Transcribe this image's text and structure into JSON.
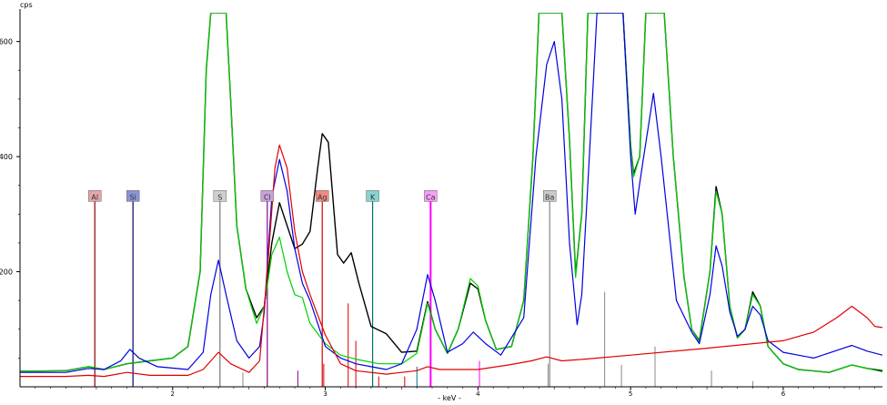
{
  "chart_data": {
    "type": "line",
    "title": "",
    "xlabel": "- keV -",
    "ylabel": "cps",
    "xlim": [
      1.0,
      6.65
    ],
    "ylim": [
      0,
      650
    ],
    "x_ticks": [
      2,
      3,
      4,
      5,
      6
    ],
    "y_ticks": [
      200,
      400,
      600
    ],
    "colors": {
      "axis": "#000000",
      "series_black": "#000000",
      "series_green": "#00d000",
      "series_blue": "#0000e0",
      "series_red": "#e00000"
    },
    "series": [
      {
        "color": "#000000",
        "style": "solid",
        "points": [
          [
            1.0,
            27
          ],
          [
            1.3,
            28
          ],
          [
            1.45,
            35
          ],
          [
            1.55,
            30
          ],
          [
            1.7,
            40
          ],
          [
            1.85,
            45
          ],
          [
            2.0,
            50
          ],
          [
            2.1,
            70
          ],
          [
            2.18,
            200
          ],
          [
            2.22,
            550
          ],
          [
            2.25,
            650
          ],
          [
            2.3,
            650
          ],
          [
            2.35,
            650
          ],
          [
            2.38,
            500
          ],
          [
            2.42,
            280
          ],
          [
            2.48,
            170
          ],
          [
            2.55,
            120
          ],
          [
            2.6,
            140
          ],
          [
            2.65,
            250
          ],
          [
            2.7,
            320
          ],
          [
            2.75,
            280
          ],
          [
            2.8,
            240
          ],
          [
            2.85,
            248
          ],
          [
            2.9,
            270
          ],
          [
            2.95,
            380
          ],
          [
            2.98,
            440
          ],
          [
            3.02,
            425
          ],
          [
            3.08,
            230
          ],
          [
            3.12,
            215
          ],
          [
            3.17,
            233
          ],
          [
            3.22,
            180
          ],
          [
            3.3,
            105
          ],
          [
            3.4,
            92
          ],
          [
            3.5,
            60
          ],
          [
            3.6,
            62
          ],
          [
            3.67,
            148
          ],
          [
            3.72,
            100
          ],
          [
            3.8,
            58
          ],
          [
            3.87,
            100
          ],
          [
            3.95,
            180
          ],
          [
            4.0,
            170
          ],
          [
            4.05,
            115
          ],
          [
            4.12,
            65
          ],
          [
            4.22,
            70
          ],
          [
            4.3,
            150
          ],
          [
            4.36,
            400
          ],
          [
            4.4,
            650
          ],
          [
            4.45,
            650
          ],
          [
            4.55,
            650
          ],
          [
            4.6,
            430
          ],
          [
            4.64,
            195
          ],
          [
            4.68,
            300
          ],
          [
            4.72,
            650
          ],
          [
            4.78,
            650
          ],
          [
            4.95,
            650
          ],
          [
            5.0,
            420
          ],
          [
            5.02,
            370
          ],
          [
            5.06,
            400
          ],
          [
            5.1,
            650
          ],
          [
            5.22,
            650
          ],
          [
            5.28,
            400
          ],
          [
            5.35,
            190
          ],
          [
            5.4,
            100
          ],
          [
            5.45,
            80
          ],
          [
            5.52,
            200
          ],
          [
            5.56,
            348
          ],
          [
            5.6,
            300
          ],
          [
            5.65,
            140
          ],
          [
            5.7,
            85
          ],
          [
            5.75,
            100
          ],
          [
            5.8,
            165
          ],
          [
            5.85,
            140
          ],
          [
            5.9,
            70
          ],
          [
            6.0,
            40
          ],
          [
            6.1,
            30
          ],
          [
            6.3,
            25
          ],
          [
            6.45,
            38
          ],
          [
            6.55,
            32
          ],
          [
            6.65,
            28
          ]
        ]
      },
      {
        "color": "#00d000",
        "style": "solid",
        "points": [
          [
            1.0,
            27
          ],
          [
            1.3,
            28
          ],
          [
            1.45,
            35
          ],
          [
            1.55,
            30
          ],
          [
            1.7,
            40
          ],
          [
            1.85,
            45
          ],
          [
            2.0,
            50
          ],
          [
            2.1,
            70
          ],
          [
            2.18,
            200
          ],
          [
            2.22,
            550
          ],
          [
            2.25,
            650
          ],
          [
            2.3,
            650
          ],
          [
            2.35,
            650
          ],
          [
            2.38,
            500
          ],
          [
            2.42,
            280
          ],
          [
            2.48,
            170
          ],
          [
            2.55,
            110
          ],
          [
            2.6,
            140
          ],
          [
            2.65,
            230
          ],
          [
            2.7,
            260
          ],
          [
            2.75,
            200
          ],
          [
            2.8,
            160
          ],
          [
            2.85,
            155
          ],
          [
            2.9,
            110
          ],
          [
            3.0,
            75
          ],
          [
            3.1,
            55
          ],
          [
            3.2,
            48
          ],
          [
            3.35,
            40
          ],
          [
            3.5,
            40
          ],
          [
            3.6,
            58
          ],
          [
            3.67,
            145
          ],
          [
            3.72,
            100
          ],
          [
            3.8,
            58
          ],
          [
            3.87,
            100
          ],
          [
            3.95,
            188
          ],
          [
            4.0,
            175
          ],
          [
            4.05,
            115
          ],
          [
            4.12,
            65
          ],
          [
            4.22,
            70
          ],
          [
            4.3,
            150
          ],
          [
            4.36,
            400
          ],
          [
            4.4,
            650
          ],
          [
            4.45,
            650
          ],
          [
            4.55,
            650
          ],
          [
            4.6,
            430
          ],
          [
            4.64,
            190
          ],
          [
            4.68,
            300
          ],
          [
            4.72,
            650
          ],
          [
            4.78,
            650
          ],
          [
            4.95,
            650
          ],
          [
            5.0,
            420
          ],
          [
            5.02,
            365
          ],
          [
            5.06,
            400
          ],
          [
            5.1,
            650
          ],
          [
            5.22,
            650
          ],
          [
            5.28,
            400
          ],
          [
            5.35,
            190
          ],
          [
            5.4,
            100
          ],
          [
            5.45,
            78
          ],
          [
            5.52,
            200
          ],
          [
            5.56,
            340
          ],
          [
            5.6,
            300
          ],
          [
            5.65,
            140
          ],
          [
            5.7,
            85
          ],
          [
            5.75,
            100
          ],
          [
            5.8,
            160
          ],
          [
            5.85,
            140
          ],
          [
            5.9,
            70
          ],
          [
            6.0,
            40
          ],
          [
            6.1,
            30
          ],
          [
            6.3,
            25
          ],
          [
            6.45,
            38
          ],
          [
            6.55,
            32
          ],
          [
            6.65,
            26
          ]
        ]
      },
      {
        "color": "#0000e0",
        "style": "solid",
        "points": [
          [
            1.0,
            25
          ],
          [
            1.3,
            25
          ],
          [
            1.45,
            32
          ],
          [
            1.55,
            30
          ],
          [
            1.66,
            45
          ],
          [
            1.72,
            65
          ],
          [
            1.78,
            50
          ],
          [
            1.9,
            35
          ],
          [
            2.1,
            30
          ],
          [
            2.2,
            60
          ],
          [
            2.25,
            160
          ],
          [
            2.3,
            220
          ],
          [
            2.35,
            160
          ],
          [
            2.42,
            80
          ],
          [
            2.5,
            50
          ],
          [
            2.57,
            70
          ],
          [
            2.6,
            130
          ],
          [
            2.65,
            330
          ],
          [
            2.7,
            395
          ],
          [
            2.75,
            340
          ],
          [
            2.8,
            240
          ],
          [
            2.85,
            180
          ],
          [
            2.9,
            150
          ],
          [
            3.0,
            70
          ],
          [
            3.1,
            50
          ],
          [
            3.2,
            40
          ],
          [
            3.3,
            35
          ],
          [
            3.4,
            30
          ],
          [
            3.5,
            40
          ],
          [
            3.6,
            100
          ],
          [
            3.67,
            195
          ],
          [
            3.72,
            150
          ],
          [
            3.8,
            60
          ],
          [
            3.9,
            75
          ],
          [
            3.97,
            95
          ],
          [
            4.05,
            75
          ],
          [
            4.15,
            55
          ],
          [
            4.3,
            120
          ],
          [
            4.38,
            400
          ],
          [
            4.45,
            560
          ],
          [
            4.5,
            600
          ],
          [
            4.55,
            500
          ],
          [
            4.6,
            250
          ],
          [
            4.65,
            108
          ],
          [
            4.68,
            160
          ],
          [
            4.73,
            400
          ],
          [
            4.78,
            650
          ],
          [
            4.95,
            650
          ],
          [
            5.0,
            400
          ],
          [
            5.03,
            300
          ],
          [
            5.08,
            390
          ],
          [
            5.15,
            510
          ],
          [
            5.2,
            400
          ],
          [
            5.3,
            150
          ],
          [
            5.4,
            95
          ],
          [
            5.45,
            75
          ],
          [
            5.52,
            160
          ],
          [
            5.56,
            245
          ],
          [
            5.6,
            210
          ],
          [
            5.65,
            130
          ],
          [
            5.7,
            88
          ],
          [
            5.75,
            100
          ],
          [
            5.8,
            140
          ],
          [
            5.85,
            125
          ],
          [
            5.9,
            80
          ],
          [
            6.0,
            60
          ],
          [
            6.2,
            50
          ],
          [
            6.45,
            72
          ],
          [
            6.55,
            62
          ],
          [
            6.65,
            55
          ]
        ]
      },
      {
        "color": "#e00000",
        "style": "solid",
        "points": [
          [
            1.0,
            18
          ],
          [
            1.3,
            18
          ],
          [
            1.45,
            20
          ],
          [
            1.55,
            18
          ],
          [
            1.7,
            25
          ],
          [
            1.85,
            20
          ],
          [
            2.1,
            20
          ],
          [
            2.2,
            30
          ],
          [
            2.3,
            60
          ],
          [
            2.38,
            40
          ],
          [
            2.5,
            25
          ],
          [
            2.57,
            45
          ],
          [
            2.62,
            200
          ],
          [
            2.67,
            380
          ],
          [
            2.7,
            420
          ],
          [
            2.75,
            380
          ],
          [
            2.8,
            270
          ],
          [
            2.85,
            200
          ],
          [
            2.9,
            160
          ],
          [
            3.0,
            90
          ],
          [
            3.1,
            40
          ],
          [
            3.2,
            28
          ],
          [
            3.4,
            22
          ],
          [
            3.5,
            25
          ],
          [
            3.6,
            28
          ],
          [
            3.67,
            35
          ],
          [
            3.75,
            30
          ],
          [
            4.0,
            30
          ],
          [
            4.2,
            38
          ],
          [
            4.35,
            45
          ],
          [
            4.45,
            52
          ],
          [
            4.55,
            45
          ],
          [
            4.7,
            48
          ],
          [
            5.0,
            55
          ],
          [
            5.5,
            67
          ],
          [
            6.0,
            80
          ],
          [
            6.2,
            95
          ],
          [
            6.35,
            120
          ],
          [
            6.45,
            140
          ],
          [
            6.55,
            120
          ],
          [
            6.6,
            105
          ],
          [
            6.65,
            103
          ]
        ]
      }
    ],
    "elements": [
      {
        "symbol": "Al",
        "energy": 1.49,
        "height": 330,
        "color": "#8b0000",
        "box": "#e3a7a7"
      },
      {
        "symbol": "Si",
        "energy": 1.74,
        "height": 330,
        "color": "#00006a",
        "box": "#8c93d8"
      },
      {
        "symbol": "S",
        "energy": 2.31,
        "height": 330,
        "color": "#777777",
        "box": "#cfcfcf"
      },
      {
        "symbol": "Cl",
        "energy": 2.62,
        "height": 330,
        "color": "#8a008a",
        "box": "#c7a3d9"
      },
      {
        "symbol": "Ag",
        "energy": 2.98,
        "height": 330,
        "color": "#d40000",
        "box": "#f08a80"
      },
      {
        "symbol": "K",
        "energy": 3.31,
        "height": 330,
        "color": "#007070",
        "box": "#8ad3d3"
      },
      {
        "symbol": "Ca",
        "energy": 3.69,
        "height": 330,
        "color": "#ff00ff",
        "box": "#f5a0f5"
      },
      {
        "symbol": "Ba",
        "energy": 4.47,
        "height": 330,
        "color": "#888888",
        "box": "#c9c9c9"
      }
    ],
    "minor_lines": [
      {
        "energy": 2.46,
        "height": 25,
        "color": "#888888"
      },
      {
        "energy": 2.82,
        "height": 28,
        "color": "#8a008a"
      },
      {
        "energy": 2.99,
        "height": 40,
        "color": "#d40000"
      },
      {
        "energy": 3.15,
        "height": 145,
        "color": "#d40000"
      },
      {
        "energy": 3.2,
        "height": 80,
        "color": "#d40000"
      },
      {
        "energy": 3.35,
        "height": 18,
        "color": "#d40000"
      },
      {
        "energy": 3.52,
        "height": 18,
        "color": "#d40000"
      },
      {
        "energy": 3.6,
        "height": 35,
        "color": "#007070"
      },
      {
        "energy": 4.01,
        "height": 45,
        "color": "#ff00ff"
      },
      {
        "energy": 4.46,
        "height": 40,
        "color": "#888888"
      },
      {
        "energy": 4.83,
        "height": 165,
        "color": "#888888"
      },
      {
        "energy": 4.94,
        "height": 38,
        "color": "#888888"
      },
      {
        "energy": 5.16,
        "height": 70,
        "color": "#888888"
      },
      {
        "energy": 5.53,
        "height": 28,
        "color": "#888888"
      },
      {
        "energy": 5.8,
        "height": 10,
        "color": "#888888"
      }
    ]
  }
}
